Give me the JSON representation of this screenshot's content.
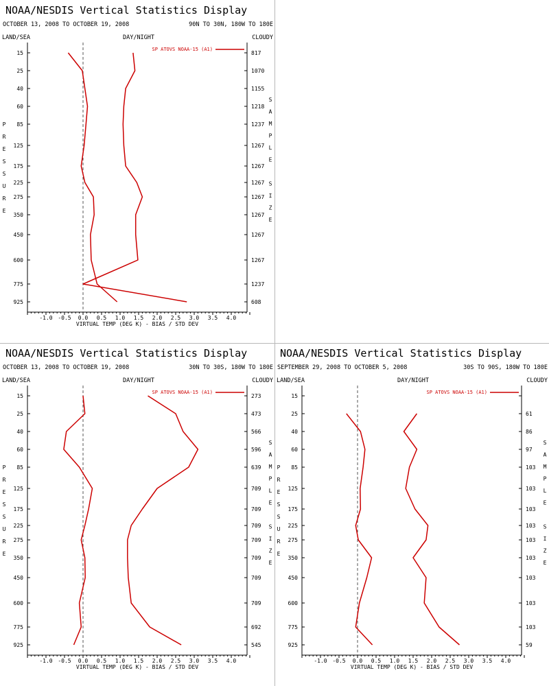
{
  "chart_data": [
    {
      "type": "line",
      "title": "NOAA/NESDIS Vertical Statistics Display",
      "subtitle_left": "OCTOBER 13, 2008 TO OCTOBER 19, 2008",
      "subtitle_right": "90N TO 30N, 180W TO 180E",
      "corner_left": "LAND/SEA",
      "corner_center": "DAY/NIGHT",
      "corner_right": "CLOUDY",
      "xlabel": "VIRTUAL TEMP (DEG K) - BIAS / STD DEV",
      "ylabel": "PRESSURE",
      "right_label": "SAMPLE SIZE",
      "legend": "SP ATOVS NOAA-15 (A1)",
      "xlim": [
        -1.5,
        4.5
      ],
      "xticks": [
        "-1.0",
        "-0.5",
        "0.0",
        "0.5",
        "1.0",
        "1.5",
        "2.0",
        "2.5",
        "3.0",
        "3.5",
        "4.0"
      ],
      "levels": [
        "15",
        "25",
        "40",
        "60",
        "85",
        "125",
        "175",
        "225",
        "275",
        "350",
        "450",
        "600",
        "775",
        "925"
      ],
      "sample_size": [
        "817",
        "1070",
        "1155",
        "1218",
        "1237",
        "1267",
        "1267",
        "1267",
        "1267",
        "1267",
        "1267",
        "1267",
        "1237",
        "608"
      ],
      "color": "#cc0000",
      "series": [
        {
          "values": [
            -0.4,
            -0.02,
            0.05,
            0.12,
            0.08,
            0.03,
            -0.05,
            0.05,
            0.28,
            0.3,
            0.2,
            0.22,
            0.38,
            0.92
          ]
        },
        {
          "values": [
            1.35,
            1.4,
            1.15,
            1.1,
            1.08,
            1.1,
            1.15,
            1.45,
            1.6,
            1.42,
            1.42,
            1.48,
            0.0,
            2.8
          ]
        }
      ]
    },
    {
      "type": "line",
      "title": "NOAA/NESDIS Vertical Statistics Display",
      "subtitle_left": "OCTOBER 13, 2008 TO OCTOBER 19, 2008",
      "subtitle_right": "30N TO 30S, 180W TO 180E",
      "corner_left": "LAND/SEA",
      "corner_center": "DAY/NIGHT",
      "corner_right": "CLOUDY",
      "xlabel": "VIRTUAL TEMP (DEG K) - BIAS / STD DEV",
      "ylabel": "PRESSURE",
      "right_label": "SAMPLE SIZE",
      "legend": "SP ATOVS NOAA-15 (A1)",
      "xlim": [
        -1.5,
        4.5
      ],
      "xticks": [
        "-1.0",
        "-0.5",
        "0.0",
        "0.5",
        "1.0",
        "1.5",
        "2.0",
        "2.5",
        "3.0",
        "3.5",
        "4.0"
      ],
      "levels": [
        "15",
        "25",
        "40",
        "60",
        "85",
        "125",
        "175",
        "225",
        "275",
        "350",
        "450",
        "600",
        "775",
        "925"
      ],
      "sample_size": [
        "273",
        "473",
        "566",
        "596",
        "639",
        "709",
        "709",
        "709",
        "709",
        "709",
        "709",
        "709",
        "692",
        "545"
      ],
      "color": "#cc0000",
      "series": [
        {
          "values": [
            0.0,
            0.05,
            -0.45,
            -0.52,
            -0.1,
            0.25,
            0.15,
            0.05,
            -0.05,
            0.05,
            0.06,
            -0.1,
            -0.05,
            -0.25
          ]
        },
        {
          "values": [
            1.75,
            2.5,
            2.7,
            3.1,
            2.85,
            2.0,
            1.6,
            1.3,
            1.2,
            1.2,
            1.22,
            1.3,
            1.8,
            2.65
          ]
        }
      ]
    },
    {
      "type": "line",
      "title": "NOAA/NESDIS Vertical Statistics Display",
      "subtitle_left": "SEPTEMBER 29, 2008 TO OCTOBER 5, 2008",
      "subtitle_right": "30S TO 90S, 180W TO 180E",
      "corner_left": "LAND/SEA",
      "corner_center": "DAY/NIGHT",
      "corner_right": "CLOUDY",
      "xlabel": "VIRTUAL TEMP (DEG K) - BIAS / STD DEV",
      "ylabel": "PRESSURE",
      "right_label": "SAMPLE SIZE",
      "legend": "SP ATOVS NOAA-15 (A1)",
      "xlim": [
        -1.5,
        4.5
      ],
      "xticks": [
        "-1.0",
        "-0.5",
        "0.0",
        "0.5",
        "1.0",
        "1.5",
        "2.0",
        "2.5",
        "3.0",
        "3.5",
        "4.0"
      ],
      "levels": [
        "15",
        "25",
        "40",
        "60",
        "85",
        "125",
        "175",
        "225",
        "275",
        "350",
        "450",
        "600",
        "775",
        "925"
      ],
      "sample_size": [
        "",
        "61",
        "86",
        "97",
        "103",
        "103",
        "103",
        "103",
        "103",
        "103",
        "103",
        "103",
        "103",
        "59"
      ],
      "color": "#cc0000",
      "series": [
        {
          "values": [
            null,
            -0.3,
            0.08,
            0.2,
            0.15,
            0.07,
            0.08,
            -0.05,
            0.02,
            0.38,
            0.25,
            0.05,
            -0.05,
            0.4
          ]
        },
        {
          "values": [
            null,
            1.6,
            1.25,
            1.6,
            1.4,
            1.3,
            1.55,
            1.9,
            1.85,
            1.5,
            1.85,
            1.8,
            2.2,
            2.75
          ]
        }
      ]
    }
  ]
}
